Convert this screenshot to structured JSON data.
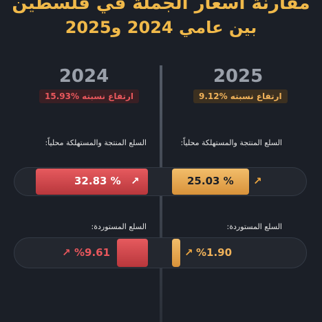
{
  "header": {
    "title": "مقارنة أسعار الجملة في فلسطين",
    "subtitle": "بين عامي 2024 و2025"
  },
  "columns": [
    {
      "year": "2024",
      "change": "ارتفاع نسبته %15.93",
      "rows": [
        {
          "label": "السلع المنتجة والمستهلكة محلياً:",
          "value": "% 32.83"
        },
        {
          "label": "السلع المستوردة:",
          "value": "%9.61"
        }
      ]
    },
    {
      "year": "2025",
      "change": "ارتفاع نسبته %9.12",
      "rows": [
        {
          "label": "السلع المنتجة والمستهلكة محلياً:",
          "value": "% 25.03"
        },
        {
          "label": "السلع المستوردة:",
          "value": "%1.90"
        }
      ]
    }
  ]
}
